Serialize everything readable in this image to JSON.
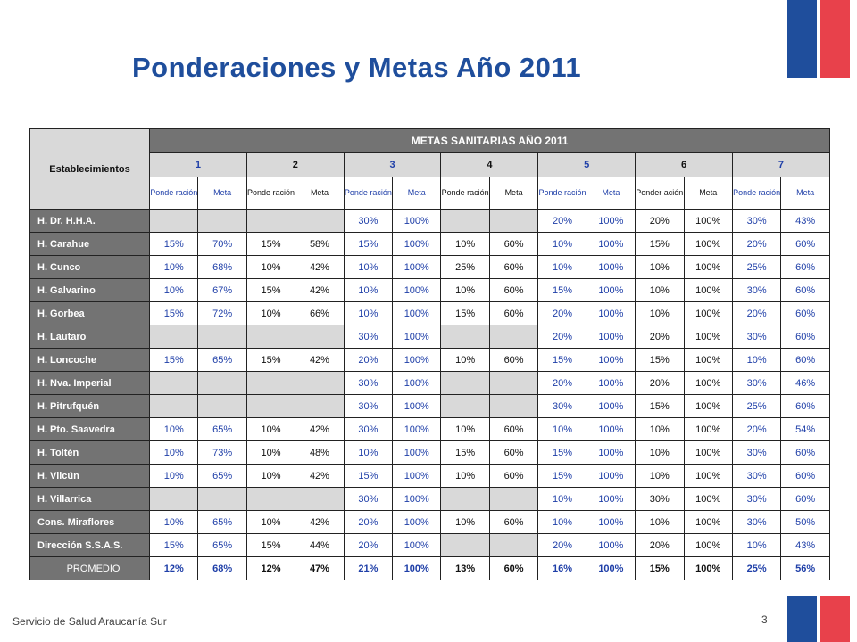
{
  "title": "Ponderaciones y Metas Año 2011",
  "footer": "Servicio de Salud Araucanía Sur",
  "page_number": "3",
  "colors": {
    "flag_blue": "#1f4e9c",
    "flag_red": "#e8414b",
    "header_gray": "#737373",
    "cell_gray": "#d9d9d9",
    "value_blue": "#1f3fa8"
  },
  "table": {
    "corner_label": "Establecimientos",
    "main_header": "METAS SANITARIAS AÑO 2011",
    "goals": [
      {
        "num": "1",
        "sub": [
          "Ponde ración",
          "Meta"
        ]
      },
      {
        "num": "2",
        "sub": [
          "Ponde ración",
          "Meta"
        ]
      },
      {
        "num": "3",
        "sub": [
          "Ponde ración",
          "Meta"
        ]
      },
      {
        "num": "4",
        "sub": [
          "Ponde ración",
          "Meta"
        ]
      },
      {
        "num": "5",
        "sub": [
          "Ponde ración",
          "Meta"
        ]
      },
      {
        "num": "6",
        "sub": [
          "Ponder ación",
          "Meta"
        ]
      },
      {
        "num": "7",
        "sub": [
          "Ponde ración",
          "Meta"
        ]
      }
    ],
    "rows": [
      {
        "name": "H. Dr. H.H.A.",
        "cells": [
          "",
          "",
          "",
          "",
          "30%",
          "100%",
          "",
          "",
          "20%",
          "100%",
          "20%",
          "100%",
          "30%",
          "43%"
        ]
      },
      {
        "name": "H. Carahue",
        "cells": [
          "15%",
          "70%",
          "15%",
          "58%",
          "15%",
          "100%",
          "10%",
          "60%",
          "10%",
          "100%",
          "15%",
          "100%",
          "20%",
          "60%"
        ]
      },
      {
        "name": "H. Cunco",
        "cells": [
          "10%",
          "68%",
          "10%",
          "42%",
          "10%",
          "100%",
          "25%",
          "60%",
          "10%",
          "100%",
          "10%",
          "100%",
          "25%",
          "60%"
        ]
      },
      {
        "name": "H. Galvarino",
        "cells": [
          "10%",
          "67%",
          "15%",
          "42%",
          "10%",
          "100%",
          "10%",
          "60%",
          "15%",
          "100%",
          "10%",
          "100%",
          "30%",
          "60%"
        ]
      },
      {
        "name": "H. Gorbea",
        "cells": [
          "15%",
          "72%",
          "10%",
          "66%",
          "10%",
          "100%",
          "15%",
          "60%",
          "20%",
          "100%",
          "10%",
          "100%",
          "20%",
          "60%"
        ]
      },
      {
        "name": "H. Lautaro",
        "cells": [
          "",
          "",
          "",
          "",
          "30%",
          "100%",
          "",
          "",
          "20%",
          "100%",
          "20%",
          "100%",
          "30%",
          "60%"
        ]
      },
      {
        "name": "H. Loncoche",
        "cells": [
          "15%",
          "65%",
          "15%",
          "42%",
          "20%",
          "100%",
          "10%",
          "60%",
          "15%",
          "100%",
          "15%",
          "100%",
          "10%",
          "60%"
        ]
      },
      {
        "name": "H. Nva. Imperial",
        "cells": [
          "",
          "",
          "",
          "",
          "30%",
          "100%",
          "",
          "",
          "20%",
          "100%",
          "20%",
          "100%",
          "30%",
          "46%"
        ]
      },
      {
        "name": "H. Pitrufquén",
        "cells": [
          "",
          "",
          "",
          "",
          "30%",
          "100%",
          "",
          "",
          "30%",
          "100%",
          "15%",
          "100%",
          "25%",
          "60%"
        ]
      },
      {
        "name": "H. Pto. Saavedra",
        "cells": [
          "10%",
          "65%",
          "10%",
          "42%",
          "30%",
          "100%",
          "10%",
          "60%",
          "10%",
          "100%",
          "10%",
          "100%",
          "20%",
          "54%"
        ]
      },
      {
        "name": "H. Toltén",
        "cells": [
          "10%",
          "73%",
          "10%",
          "48%",
          "10%",
          "100%",
          "15%",
          "60%",
          "15%",
          "100%",
          "10%",
          "100%",
          "30%",
          "60%"
        ]
      },
      {
        "name": "H. Vilcún",
        "cells": [
          "10%",
          "65%",
          "10%",
          "42%",
          "15%",
          "100%",
          "10%",
          "60%",
          "15%",
          "100%",
          "10%",
          "100%",
          "30%",
          "60%"
        ]
      },
      {
        "name": "H. Villarrica",
        "cells": [
          "",
          "",
          "",
          "",
          "30%",
          "100%",
          "",
          "",
          "10%",
          "100%",
          "30%",
          "100%",
          "30%",
          "60%"
        ]
      },
      {
        "name": "Cons. Miraflores",
        "cells": [
          "10%",
          "65%",
          "10%",
          "42%",
          "20%",
          "100%",
          "10%",
          "60%",
          "10%",
          "100%",
          "10%",
          "100%",
          "30%",
          "50%"
        ]
      },
      {
        "name": "Dirección S.S.A.S.",
        "cells": [
          "15%",
          "65%",
          "15%",
          "44%",
          "20%",
          "100%",
          "",
          "",
          "20%",
          "100%",
          "20%",
          "100%",
          "10%",
          "43%"
        ]
      },
      {
        "name": "PROMEDIO",
        "cells": [
          "12%",
          "68%",
          "12%",
          "47%",
          "21%",
          "100%",
          "13%",
          "60%",
          "16%",
          "100%",
          "15%",
          "100%",
          "25%",
          "56%"
        ]
      }
    ]
  }
}
